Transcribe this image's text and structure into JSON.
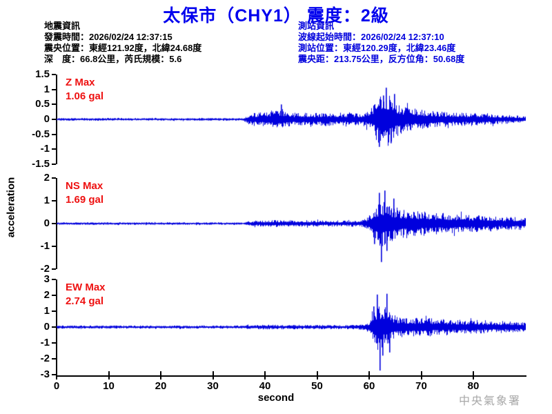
{
  "title": "太保市（CHY1） 震度：2級",
  "earthquake_info": {
    "heading": "地震資訊",
    "lines": [
      "發震時間：2026/02/24 12:37:15",
      "震央位置：東經121.92度，北緯24.68度",
      "深　度：66.8公里，芮氏規模：5.6"
    ]
  },
  "station_info": {
    "heading": "測站資訊",
    "lines": [
      "波線起始時間：2026/02/24 12:37:10",
      "測站位置：東經120.29度，北緯23.46度",
      "震央距：213.75公里，反方位角：50.68度"
    ]
  },
  "watermark": "中央氣象署",
  "colors": {
    "title": "#0000ee",
    "station_info_text": "#0000dd",
    "earthquake_info_text": "#000000",
    "trace": "#0000dd",
    "channel_label": "#ee1111",
    "axis": "#000000",
    "watermark": "#a8a8a8"
  },
  "chart_data": {
    "type": "line",
    "title": "太保市（CHY1） 震度：2級",
    "xlabel": "second",
    "ylabel": "acceleration",
    "x_ticks": [
      0,
      10,
      20,
      30,
      40,
      50,
      60,
      70,
      80
    ],
    "x_range": [
      0,
      90
    ],
    "grid": false,
    "legend": "none",
    "channels": [
      {
        "name": "Z",
        "label": "Z Max",
        "max_label": "1.06 gal",
        "max_value": 1.06,
        "unit": "gal",
        "y_ticks": [
          "1.5",
          "1",
          "0.5",
          "0",
          "-0.5",
          "-1",
          "-1.5"
        ],
        "y_range": [
          -1.5,
          1.5
        ],
        "p_arrival_s": 36,
        "s_arrival_s": 61,
        "envelope": [
          [
            0,
            0.045
          ],
          [
            35.8,
            0.045
          ],
          [
            36.3,
            0.12
          ],
          [
            37.5,
            0.22
          ],
          [
            40,
            0.24
          ],
          [
            43,
            0.3
          ],
          [
            45,
            0.22
          ],
          [
            52,
            0.22
          ],
          [
            58,
            0.2
          ],
          [
            60,
            0.3
          ],
          [
            61,
            0.55
          ],
          [
            61.8,
            0.9
          ],
          [
            63,
            1.0
          ],
          [
            64,
            0.85
          ],
          [
            65,
            0.6
          ],
          [
            66.5,
            0.45
          ],
          [
            68,
            0.4
          ],
          [
            70,
            0.32
          ],
          [
            74,
            0.26
          ],
          [
            78,
            0.22
          ],
          [
            83,
            0.18
          ],
          [
            90,
            0.12
          ]
        ],
        "spikes": [
          [
            43.1,
            0.5
          ],
          [
            61.9,
            -0.92
          ],
          [
            62.6,
            0.8
          ],
          [
            63.2,
            1.06
          ],
          [
            64.1,
            -0.8
          ],
          [
            64.8,
            0.85
          ]
        ]
      },
      {
        "name": "NS",
        "label": "NS Max",
        "max_label": "1.69 gal",
        "max_value": 1.69,
        "unit": "gal",
        "y_ticks": [
          "2",
          "1",
          "0",
          "-1",
          "-2"
        ],
        "y_range": [
          -2,
          2
        ],
        "p_arrival_s": 36,
        "s_arrival_s": 60,
        "envelope": [
          [
            0,
            0.055
          ],
          [
            35.8,
            0.055
          ],
          [
            36.5,
            0.1
          ],
          [
            38,
            0.13
          ],
          [
            42,
            0.16
          ],
          [
            48,
            0.14
          ],
          [
            54,
            0.13
          ],
          [
            58.5,
            0.14
          ],
          [
            59.8,
            0.3
          ],
          [
            60.5,
            0.55
          ],
          [
            61.3,
            0.8
          ],
          [
            62,
            1.0
          ],
          [
            62.8,
            1.05
          ],
          [
            63.5,
            0.8
          ],
          [
            65,
            0.75
          ],
          [
            66,
            0.65
          ],
          [
            68,
            0.6
          ],
          [
            70,
            0.55
          ],
          [
            72,
            0.5
          ],
          [
            75,
            0.45
          ],
          [
            78,
            0.4
          ],
          [
            82,
            0.35
          ],
          [
            86,
            0.3
          ],
          [
            90,
            0.28
          ]
        ],
        "spikes": [
          [
            60.9,
            -0.9
          ],
          [
            61.9,
            1.35
          ],
          [
            62.3,
            -1.69
          ],
          [
            62.9,
            1.45
          ],
          [
            63.3,
            -1.2
          ],
          [
            64.6,
            1.1
          ]
        ]
      },
      {
        "name": "EW",
        "label": "EW Max",
        "max_label": "2.74 gal",
        "max_value": 2.74,
        "unit": "gal",
        "y_ticks": [
          "3",
          "2",
          "1",
          "0",
          "-1",
          "-2",
          "-3"
        ],
        "y_range": [
          -3,
          3
        ],
        "p_arrival_s": 36,
        "s_arrival_s": 60,
        "envelope": [
          [
            0,
            0.1
          ],
          [
            35.8,
            0.1
          ],
          [
            36.5,
            0.13
          ],
          [
            40,
            0.15
          ],
          [
            47,
            0.14
          ],
          [
            55,
            0.13
          ],
          [
            59.5,
            0.2
          ],
          [
            60.3,
            0.6
          ],
          [
            61,
            1.1
          ],
          [
            61.6,
            1.5
          ],
          [
            62.3,
            1.4
          ],
          [
            63,
            1.3
          ],
          [
            63.8,
            1.1
          ],
          [
            64.5,
            0.8
          ],
          [
            66,
            0.65
          ],
          [
            68,
            0.6
          ],
          [
            71,
            0.55
          ],
          [
            74,
            0.5
          ],
          [
            78,
            0.45
          ],
          [
            82,
            0.4
          ],
          [
            86,
            0.38
          ],
          [
            90,
            0.3
          ]
        ],
        "spikes": [
          [
            60.8,
            1.3
          ],
          [
            61.4,
            2.05
          ],
          [
            62.0,
            -2.74
          ],
          [
            62.5,
            -1.8
          ],
          [
            63.3,
            2.1
          ],
          [
            63.9,
            -1.6
          ]
        ]
      }
    ]
  }
}
